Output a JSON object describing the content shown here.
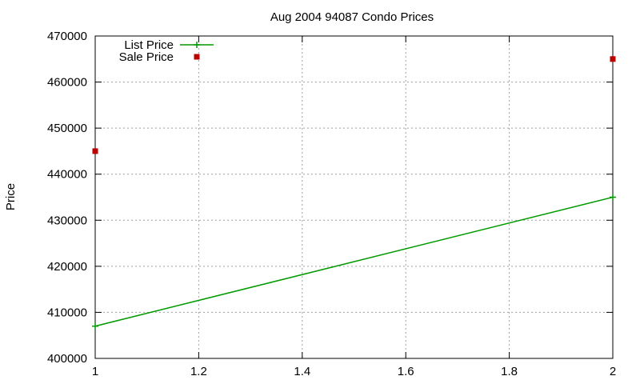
{
  "chart_data": {
    "type": "line",
    "title": "Aug 2004 94087 Condo Prices",
    "xlabel": "",
    "ylabel": "Price",
    "xlim": [
      1,
      2
    ],
    "ylim": [
      400000,
      470000
    ],
    "x_ticks": [
      1,
      1.2,
      1.4,
      1.6,
      1.8,
      2
    ],
    "x_tick_labels": [
      "1",
      "1.2",
      "1.4",
      "1.6",
      "1.8",
      "2"
    ],
    "y_ticks": [
      400000,
      410000,
      420000,
      430000,
      440000,
      450000,
      460000,
      470000
    ],
    "y_tick_labels": [
      "400000",
      "410000",
      "420000",
      "430000",
      "440000",
      "450000",
      "460000",
      "470000"
    ],
    "grid": true,
    "legend_position": "top-left",
    "series": [
      {
        "name": "List Price",
        "style": "linespoints",
        "color": "#009900",
        "x": [
          1,
          2
        ],
        "y": [
          407000,
          435000
        ]
      },
      {
        "name": "Sale Price",
        "style": "points",
        "color": "#bb0000",
        "x": [
          1,
          2
        ],
        "y": [
          445000,
          465000
        ]
      }
    ]
  }
}
